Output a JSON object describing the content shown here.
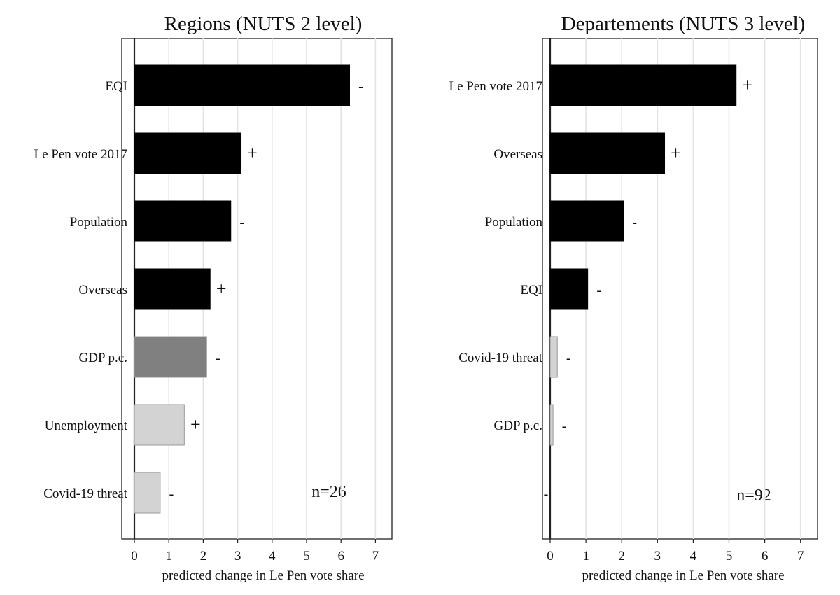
{
  "chart_data": [
    {
      "type": "bar",
      "title": "Regions (NUTS 2 level)",
      "xlabel": "predicted change in Le Pen vote share",
      "xlim": [
        0,
        7.4
      ],
      "xticks": [
        "0",
        "1",
        "2",
        "3",
        "4",
        "5",
        "6",
        "7"
      ],
      "grid": true,
      "annotation": "n=26",
      "categories": [
        "EQI",
        "Le Pen vote 2017",
        "Population",
        "Overseas",
        "GDP p.c.",
        "Unemployment",
        "Covid-19 threat"
      ],
      "values": [
        6.25,
        3.1,
        2.8,
        2.2,
        2.1,
        1.45,
        0.75
      ],
      "signs": [
        "-",
        "+",
        "-",
        "+",
        "-",
        "+",
        "-"
      ],
      "colors": [
        "#000000",
        "#000000",
        "#000000",
        "#000000",
        "#808080",
        "#d3d3d3",
        "#d3d3d3"
      ]
    },
    {
      "type": "bar",
      "title": "Departements (NUTS 3 level)",
      "xlabel": "predicted change in Le Pen vote share",
      "xlim": [
        0,
        7.4
      ],
      "xticks": [
        "0",
        "1",
        "2",
        "3",
        "4",
        "5",
        "6",
        "7"
      ],
      "grid": true,
      "annotation": "n=92",
      "categories": [
        "Le Pen vote 2017",
        "Overseas",
        "Population",
        "EQI",
        "Covid-19 threat",
        "GDP p.c.",
        ""
      ],
      "values": [
        5.2,
        3.2,
        2.05,
        1.05,
        0.2,
        0.08,
        0
      ],
      "signs": [
        "+",
        "+",
        "-",
        "-",
        "-",
        "-",
        "-"
      ],
      "colors": [
        "#000000",
        "#000000",
        "#000000",
        "#000000",
        "#d3d3d3",
        "#d3d3d3",
        "#d3d3d3"
      ]
    }
  ]
}
